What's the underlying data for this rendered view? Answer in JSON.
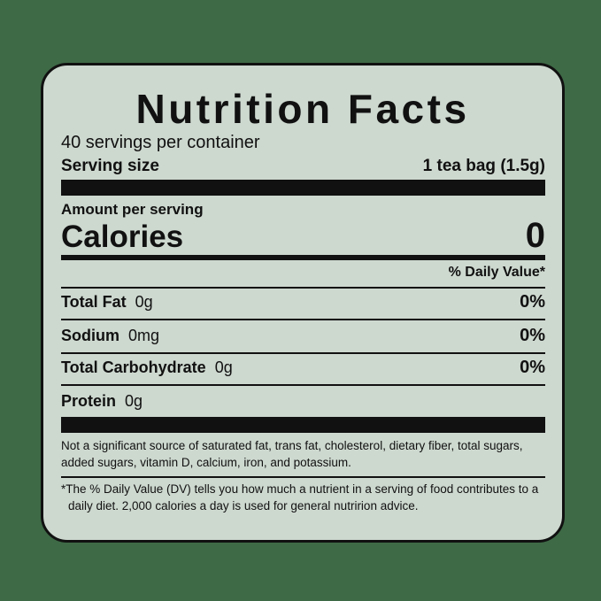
{
  "label": {
    "title": "Nutrition Facts",
    "servings_per_container": "40 servings per container",
    "serving_size_label": "Serving size",
    "serving_size_value": "1 tea bag (1.5g)",
    "amount_per_serving": "Amount per serving",
    "calories_label": "Calories",
    "calories_value": "0",
    "daily_value_header": "% Daily Value*",
    "nutrients": [
      {
        "name": "Total Fat",
        "amount": "0g",
        "dv": "0%"
      },
      {
        "name": "Sodium",
        "amount": "0mg",
        "dv": "0%"
      },
      {
        "name": "Total Carbohydrate",
        "amount": "0g",
        "dv": "0%"
      },
      {
        "name": "Protein",
        "amount": "0g"
      }
    ],
    "note": "Not a significant source of saturated fat, trans fat, cholesterol, dietary fiber, total sugars, added sugars, vitamin D, calcium, iron, and potassium.",
    "footnote": "*The % Daily Value (DV) tells you how much a nutrient in a serving of food contributes to a daily diet. 2,000 calories a day is used for general nutririon advice."
  }
}
